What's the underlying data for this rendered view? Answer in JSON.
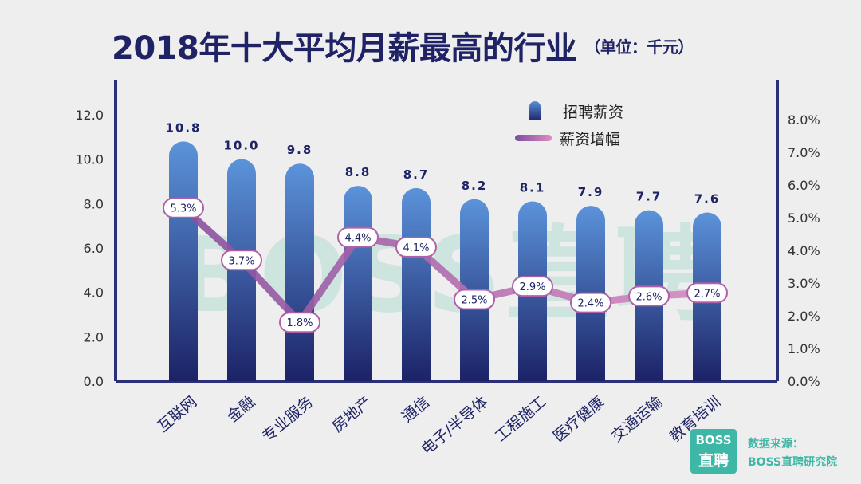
{
  "title": "2018年十大平均月薪最高的行业",
  "unit": "（单位：千元）",
  "legend": {
    "salary": "招聘薪资",
    "growth": "薪资增幅"
  },
  "source": {
    "logo_line1": "BOSS",
    "logo_line2": "直聘",
    "label": "数据来源：",
    "name": "BOSS直聘研究院"
  },
  "watermark": "BOSS直聘",
  "colors": {
    "bar_top": "#5b93da",
    "bar_bottom": "#1c2266",
    "line": "#a05aa5",
    "axis": "#2a2f78"
  },
  "chart_data": {
    "type": "bar",
    "categories": [
      "互联网",
      "金融",
      "专业服务",
      "房地产",
      "通信",
      "电子/半导体",
      "工程施工",
      "医疗健康",
      "交通运输",
      "教育培训"
    ],
    "series": [
      {
        "name": "招聘薪资",
        "type": "bar",
        "axis": "left",
        "values": [
          10.8,
          10.0,
          9.8,
          8.8,
          8.7,
          8.2,
          8.1,
          7.9,
          7.7,
          7.6
        ],
        "labels": [
          "10.8",
          "10.0",
          "9.8",
          "8.8",
          "8.7",
          "8.2",
          "8.1",
          "7.9",
          "7.7",
          "7.6"
        ]
      },
      {
        "name": "薪资增幅",
        "type": "line",
        "axis": "right",
        "values": [
          5.3,
          3.7,
          1.8,
          4.4,
          4.1,
          2.5,
          2.9,
          2.4,
          2.6,
          2.7
        ],
        "labels": [
          "5.3%",
          "3.7%",
          "1.8%",
          "4.4%",
          "4.1%",
          "2.5%",
          "2.9%",
          "2.4%",
          "2.6%",
          "2.7%"
        ]
      }
    ],
    "ylim_left": [
      0,
      12
    ],
    "yticks_left": [
      "0.0",
      "2.0",
      "4.0",
      "6.0",
      "8.0",
      "10.0",
      "12.0"
    ],
    "ylim_right": [
      0,
      8
    ],
    "yticks_right": [
      "0.0%",
      "1.0%",
      "2.0%",
      "3.0%",
      "4.0%",
      "5.0%",
      "6.0%",
      "7.0%",
      "8.0%"
    ],
    "grid": false,
    "legend_position": "top-right"
  }
}
